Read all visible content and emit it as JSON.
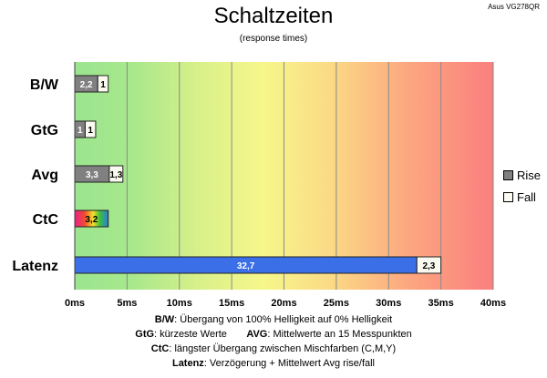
{
  "corner_label": "Asus VG278QR",
  "chart_data": {
    "type": "bar",
    "orientation": "horizontal",
    "stacked": true,
    "title": "Schaltzeiten",
    "subtitle": "(response times)",
    "categories": [
      "B/W",
      "GtG",
      "Avg",
      "CtC",
      "Latenz"
    ],
    "series": [
      {
        "name": "Rise",
        "values": [
          2.2,
          1,
          3.3,
          3.2,
          32.7
        ],
        "labels": [
          "2,2",
          "1",
          "3,3",
          "3,2",
          "32,7"
        ],
        "color": "#808080"
      },
      {
        "name": "Fall",
        "values": [
          1,
          1,
          1.3,
          null,
          2.3
        ],
        "labels": [
          "1",
          "1",
          "1,3",
          "",
          "2,3"
        ],
        "color": "#fafaf0"
      }
    ],
    "special_colors": {
      "CtC": "rainbow",
      "Latenz": "#3a6fe8"
    },
    "x_ticks": [
      "0ms",
      "5ms",
      "10ms",
      "15ms",
      "20ms",
      "25ms",
      "30ms",
      "35ms",
      "40ms"
    ],
    "xlim": [
      0,
      40
    ],
    "grid": "vertical",
    "background": "gradient green-yellow-red",
    "legend_position": "right"
  },
  "footnotes": [
    {
      "key": "B/W",
      "text": ":  Übergang von 100% Helligkeit auf 0% Helligkeit"
    },
    {
      "key": "GtG",
      "text": ": kürzeste Werte",
      "key2": "AVG",
      "text2": ": Mittelwerte an 15 Messpunkten"
    },
    {
      "key": "CtC",
      "text": ": längster Übergang zwischen Mischfarben (C,M,Y)"
    },
    {
      "key": "Latenz",
      "text": ": Verzögerung + Mittelwert Avg rise/fall"
    }
  ]
}
